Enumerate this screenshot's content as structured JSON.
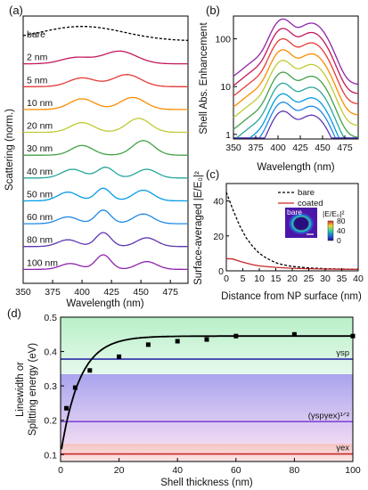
{
  "chart_data": [
    {
      "panel": "(a)",
      "type": "line",
      "xlabel": "Wavelength (nm)",
      "ylabel": "Scattering (norm.)",
      "xlim": [
        350,
        490
      ],
      "xticks": [
        350,
        375,
        400,
        425,
        450,
        475
      ],
      "offset_series": true,
      "series": [
        {
          "name": "bare",
          "color": "#000000",
          "dashed": true,
          "peaks": [
            {
              "x": 400,
              "h": 0.75,
              "w": 50
            }
          ]
        },
        {
          "name": "2 nm",
          "color": "#c2185b",
          "peaks": [
            {
              "x": 395,
              "h": 0.32,
              "w": 18
            },
            {
              "x": 432,
              "h": 0.65,
              "w": 20
            }
          ]
        },
        {
          "name": "5 nm",
          "color": "#e53935",
          "peaks": [
            {
              "x": 400,
              "h": 0.45,
              "w": 16
            },
            {
              "x": 438,
              "h": 0.62,
              "w": 17
            }
          ]
        },
        {
          "name": "10 nm",
          "color": "#fb8c00",
          "peaks": [
            {
              "x": 400,
              "h": 0.55,
              "w": 15
            },
            {
              "x": 443,
              "h": 0.62,
              "w": 15
            }
          ]
        },
        {
          "name": "20 nm",
          "color": "#c0ca33",
          "peaks": [
            {
              "x": 400,
              "h": 0.5,
              "w": 14
            },
            {
              "x": 448,
              "h": 0.72,
              "w": 14
            }
          ]
        },
        {
          "name": "30 nm",
          "color": "#43a047",
          "peaks": [
            {
              "x": 400,
              "h": 0.5,
              "w": 13
            },
            {
              "x": 452,
              "h": 0.75,
              "w": 13
            }
          ]
        },
        {
          "name": "40 nm",
          "color": "#26a69a",
          "peaks": [
            {
              "x": 392,
              "h": 0.45,
              "w": 13
            },
            {
              "x": 420,
              "h": 0.55,
              "w": 10
            },
            {
              "x": 455,
              "h": 0.45,
              "w": 12
            }
          ]
        },
        {
          "name": "50 nm",
          "color": "#039be5",
          "peaks": [
            {
              "x": 388,
              "h": 0.45,
              "w": 12
            },
            {
              "x": 418,
              "h": 0.65,
              "w": 9
            },
            {
              "x": 452,
              "h": 0.55,
              "w": 12
            }
          ]
        },
        {
          "name": "60 nm",
          "color": "#1e88e5",
          "peaks": [
            {
              "x": 388,
              "h": 0.35,
              "w": 12
            },
            {
              "x": 418,
              "h": 0.7,
              "w": 9
            },
            {
              "x": 452,
              "h": 0.5,
              "w": 12
            }
          ]
        },
        {
          "name": "80 nm",
          "color": "#5e35b1",
          "peaks": [
            {
              "x": 388,
              "h": 0.35,
              "w": 12
            },
            {
              "x": 418,
              "h": 0.72,
              "w": 9
            },
            {
              "x": 455,
              "h": 0.45,
              "w": 12
            }
          ]
        },
        {
          "name": "100 nm",
          "color": "#8e24aa",
          "peaks": [
            {
              "x": 390,
              "h": 0.3,
              "w": 12
            },
            {
              "x": 418,
              "h": 0.75,
              "w": 9
            },
            {
              "x": 455,
              "h": 0.4,
              "w": 12
            }
          ]
        }
      ]
    },
    {
      "panel": "(b)",
      "type": "line",
      "xlabel": "Wavelength (nm)",
      "ylabel": "Shell Abs. Enhancement",
      "yscale": "log",
      "xlim": [
        350,
        490
      ],
      "ylim": [
        0.8,
        300
      ],
      "xticks": [
        350,
        375,
        400,
        425,
        450,
        475
      ],
      "yticks": [
        1,
        10,
        100
      ],
      "curve_scale": [
        220,
        140,
        85,
        50,
        30,
        17,
        10,
        6,
        4,
        2.6
      ],
      "curve_colors": [
        "#8e24aa",
        "#c2185b",
        "#e53935",
        "#fb8c00",
        "#c0ca33",
        "#43a047",
        "#26a69a",
        "#039be5",
        "#1e88e5",
        "#5e35b1"
      ]
    },
    {
      "panel": "(c)",
      "type": "line",
      "xlabel": "Distance from NP surface (nm)",
      "ylabel": "Surface-averaged |E/E₀|²",
      "xlim": [
        0,
        40
      ],
      "ylim": [
        0,
        50
      ],
      "xticks": [
        0,
        5,
        10,
        15,
        20,
        25,
        30,
        35,
        40
      ],
      "yticks": [
        0,
        20,
        40
      ],
      "legend": [
        "bare",
        "coated"
      ],
      "series": [
        {
          "name": "bare",
          "color": "#000000",
          "dashed": true,
          "x": [
            0,
            2,
            4,
            6,
            8,
            10,
            12,
            14,
            16,
            18,
            20,
            25,
            30,
            35,
            40
          ],
          "y": [
            45,
            35,
            26,
            19,
            14,
            10,
            7.5,
            5.5,
            4,
            3.2,
            2.5,
            1.7,
            1.2,
            1.0,
            0.8
          ]
        },
        {
          "name": "coated",
          "color": "#c62828",
          "dashed": false,
          "x": [
            0,
            2,
            4,
            6,
            8,
            10,
            15,
            20,
            25,
            30,
            35,
            40
          ],
          "y": [
            7,
            6.8,
            5.5,
            4.5,
            3.5,
            2.8,
            2.0,
            1.5,
            1.2,
            1.0,
            0.9,
            0.8
          ]
        }
      ],
      "inset": {
        "label": "bare",
        "colorbar_label": "|E/E₀|²",
        "colorbar_ticks": [
          0,
          40,
          80
        ]
      }
    },
    {
      "panel": "(d)",
      "type": "scatter",
      "xlabel": "Shell thickness (nm)",
      "ylabel_line1": "Linewidth or",
      "ylabel_line2": "Splitting energy (eV)",
      "xlim": [
        0,
        100
      ],
      "ylim": [
        0.08,
        0.5
      ],
      "xticks": [
        0,
        20,
        40,
        60,
        80,
        100
      ],
      "yticks": [
        0.1,
        0.2,
        0.3,
        0.4,
        0.5
      ],
      "points": {
        "x": [
          2,
          5,
          10,
          20,
          30,
          40,
          50,
          60,
          80,
          100
        ],
        "y": [
          0.235,
          0.295,
          0.345,
          0.385,
          0.42,
          0.43,
          0.435,
          0.445,
          0.45,
          0.445
        ]
      },
      "hlines": [
        {
          "label": "γsp",
          "y": 0.378,
          "color": "#2c2ca8"
        },
        {
          "label": "(γspγex)¹ᐟ²",
          "y": 0.196,
          "color": "#7b3fd6"
        },
        {
          "label": "γex",
          "y": 0.102,
          "color": "#c62828"
        }
      ]
    }
  ]
}
